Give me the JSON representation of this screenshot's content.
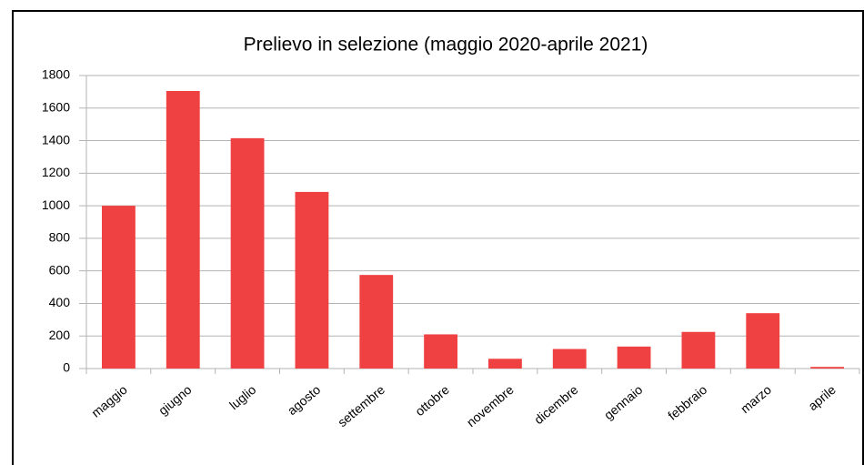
{
  "chart_data": {
    "type": "bar",
    "title": "Prelievo in selezione (maggio 2020-aprile 2021)",
    "categories": [
      "maggio",
      "giugno",
      "luglio",
      "agosto",
      "settembre",
      "ottobre",
      "novembre",
      "dicembre",
      "gennaio",
      "febbraio",
      "marzo",
      "aprile"
    ],
    "values": [
      1000,
      1705,
      1415,
      1085,
      575,
      210,
      60,
      120,
      135,
      225,
      340,
      10
    ],
    "color": "#ef4141",
    "ylim": [
      0,
      1800
    ],
    "yticks": [
      0,
      200,
      400,
      600,
      800,
      1000,
      1200,
      1400,
      1600,
      1800
    ],
    "grid": true
  }
}
